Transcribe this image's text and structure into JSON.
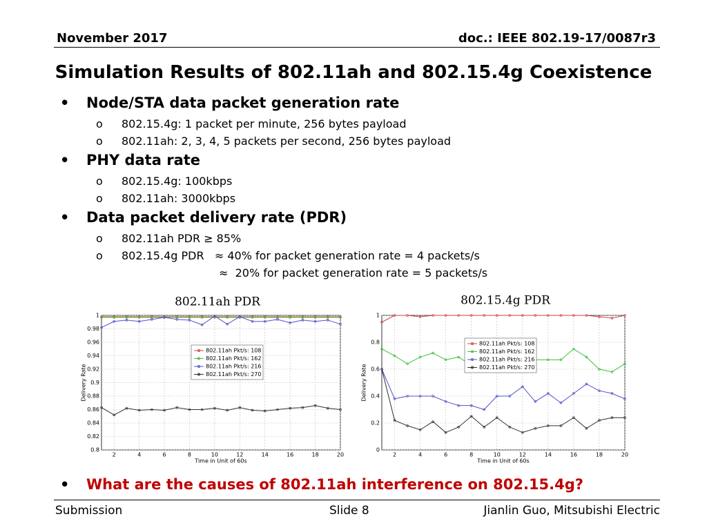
{
  "header": {
    "date": "November 2017",
    "doc": "doc.: IEEE 802.19-17/0087r3"
  },
  "title": "Simulation Results of 802.11ah and 802.15.4g Coexistence",
  "bullets": [
    {
      "text": "Node/STA data packet generation rate",
      "items": [
        "802.15.4g: 1 packet per minute, 256 bytes payload",
        "802.11ah: 2, 3, 4, 5 packets per second, 256 bytes payload"
      ]
    },
    {
      "text": "PHY data rate",
      "items": [
        "802.15.4g: 100kbps",
        "802.11ah: 3000kbps"
      ]
    },
    {
      "text": "Data packet delivery rate (PDR)",
      "items": [
        "802.11ah PDR ≥ 85%",
        "802.15.4g PDR   ≈ 40% for packet generation rate = 4 packets/s"
      ],
      "continuation": "≈  20% for packet generation rate = 5 packets/s"
    }
  ],
  "question": "What are the causes of 802.11ah interference on 802.15.4g?",
  "footer": {
    "left": "Submission",
    "center": "Slide 8",
    "right": "Jianlin Guo, Mitsubishi Electric"
  },
  "chart_data": [
    {
      "type": "line",
      "title": "802.11ah PDR",
      "xlabel": "Time in Unit of 60s",
      "ylabel": "Delivery Rate",
      "x": [
        1,
        2,
        3,
        4,
        5,
        6,
        7,
        8,
        9,
        10,
        11,
        12,
        13,
        14,
        15,
        16,
        17,
        18,
        19,
        20
      ],
      "series": [
        {
          "name": "802.11ah Pkt/s: 108",
          "color": "#d04040",
          "values": [
            0.998,
            0.998,
            0.998,
            0.998,
            0.998,
            0.998,
            0.998,
            0.998,
            0.998,
            0.998,
            0.998,
            0.998,
            0.998,
            0.998,
            0.998,
            0.998,
            0.998,
            0.998,
            0.998,
            0.998
          ]
        },
        {
          "name": "802.11ah Pkt/s: 162",
          "color": "#40c040",
          "values": [
            0.997,
            0.997,
            0.997,
            0.997,
            0.997,
            0.997,
            0.997,
            0.997,
            0.997,
            0.997,
            0.997,
            0.997,
            0.997,
            0.997,
            0.997,
            0.997,
            0.997,
            0.997,
            0.997,
            0.997
          ]
        },
        {
          "name": "802.11ah Pkt/s: 216",
          "color": "#5050c8",
          "values": [
            0.982,
            0.991,
            0.993,
            0.991,
            0.994,
            0.997,
            0.994,
            0.993,
            0.986,
            0.999,
            0.987,
            0.998,
            0.991,
            0.991,
            0.994,
            0.989,
            0.993,
            0.991,
            0.993,
            0.987
          ]
        },
        {
          "name": "802.11ah Pkt/s: 270",
          "color": "#303030",
          "values": [
            0.863,
            0.852,
            0.862,
            0.859,
            0.86,
            0.859,
            0.863,
            0.86,
            0.86,
            0.862,
            0.859,
            0.863,
            0.859,
            0.858,
            0.86,
            0.862,
            0.863,
            0.866,
            0.862,
            0.86
          ]
        }
      ],
      "xlim": [
        1,
        20
      ],
      "ylim": [
        0.8,
        1
      ],
      "xticks": [
        2,
        4,
        6,
        8,
        10,
        12,
        14,
        16,
        18,
        20
      ],
      "yticks": [
        0.8,
        0.82,
        0.84,
        0.86,
        0.88,
        0.9,
        0.92,
        0.94,
        0.96,
        0.98,
        1
      ],
      "grid": true,
      "legend": "center"
    },
    {
      "type": "line",
      "title": "802.15.4g PDR",
      "xlabel": "Time in Unit of 60s",
      "ylabel": "Delivery Rate",
      "x": [
        1,
        2,
        3,
        4,
        5,
        6,
        7,
        8,
        9,
        10,
        11,
        12,
        13,
        14,
        15,
        16,
        17,
        18,
        19,
        20
      ],
      "series": [
        {
          "name": "802.11ah Pkt/s: 108",
          "color": "#d04040",
          "values": [
            0.95,
            1,
            1,
            0.99,
            1,
            1,
            1,
            1,
            1,
            1,
            1,
            1,
            1,
            1,
            1,
            1,
            1,
            0.99,
            0.98,
            1
          ]
        },
        {
          "name": "802.11ah Pkt/s: 162",
          "color": "#40c040",
          "values": [
            0.75,
            0.7,
            0.64,
            0.69,
            0.72,
            0.67,
            0.69,
            0.63,
            0.66,
            0.68,
            0.7,
            0.66,
            0.67,
            0.67,
            0.67,
            0.75,
            0.69,
            0.6,
            0.58,
            0.64
          ]
        },
        {
          "name": "802.11ah Pkt/s: 216",
          "color": "#5050c8",
          "values": [
            0.6,
            0.38,
            0.4,
            0.4,
            0.4,
            0.36,
            0.33,
            0.33,
            0.3,
            0.4,
            0.4,
            0.47,
            0.36,
            0.42,
            0.35,
            0.42,
            0.49,
            0.44,
            0.42,
            0.38
          ]
        },
        {
          "name": "802.11ah Pkt/s: 270",
          "color": "#303030",
          "values": [
            0.6,
            0.22,
            0.18,
            0.15,
            0.21,
            0.13,
            0.17,
            0.25,
            0.17,
            0.24,
            0.17,
            0.13,
            0.16,
            0.18,
            0.18,
            0.24,
            0.16,
            0.22,
            0.24,
            0.24
          ]
        }
      ],
      "xlim": [
        1,
        20
      ],
      "ylim": [
        0,
        1
      ],
      "xticks": [
        2,
        4,
        6,
        8,
        10,
        12,
        14,
        16,
        18,
        20
      ],
      "yticks": [
        0,
        0.2,
        0.4,
        0.6,
        0.8,
        1
      ],
      "grid": true,
      "legend": "upper center"
    }
  ]
}
